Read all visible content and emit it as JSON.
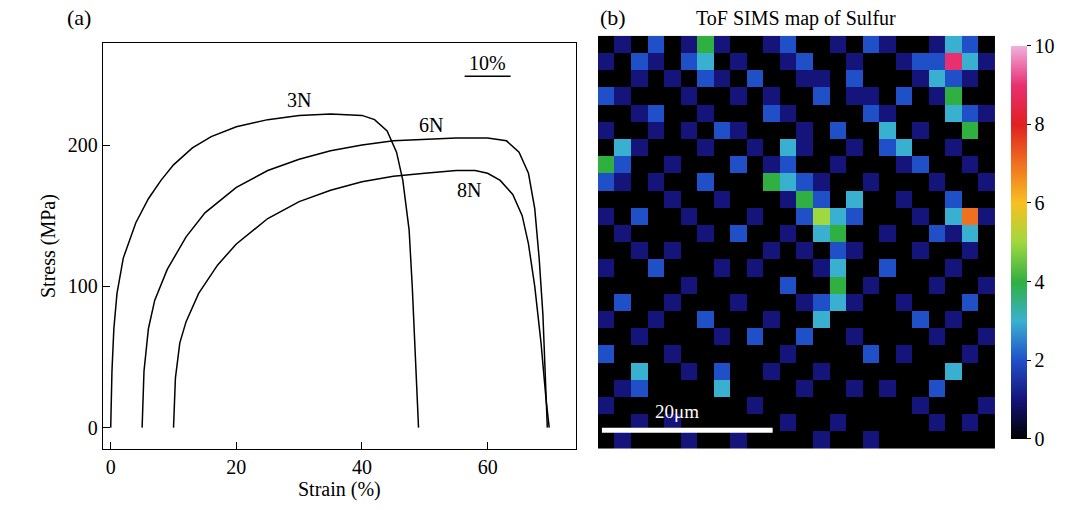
{
  "chart_data": [
    {
      "type": "line",
      "panel_label": "(a)",
      "x_label": "Strain (%)",
      "y_label": "Stress (MPa)",
      "xlim": [
        -1.2,
        74
      ],
      "ylim": [
        -15,
        272
      ],
      "xticks": [
        0,
        20,
        40,
        60
      ],
      "yticks": [
        0,
        100,
        200
      ],
      "grid": false,
      "scale_bar": {
        "text": "10%",
        "x": 60,
        "y": 258
      },
      "series": [
        {
          "name": "3N",
          "color": "#000000",
          "label_at": [
            30,
            232
          ],
          "x": [
            0,
            0.2,
            0.5,
            1,
            2,
            4,
            6,
            8,
            10,
            13,
            16,
            20,
            25,
            30,
            35,
            40,
            42,
            44,
            45.5,
            46.5,
            47.5,
            48,
            48.5,
            49
          ],
          "values": [
            0,
            40,
            70,
            95,
            120,
            145,
            162,
            175,
            186,
            198,
            206,
            213,
            218,
            221,
            222,
            221,
            218,
            210,
            195,
            175,
            140,
            100,
            50,
            0
          ]
        },
        {
          "name": "6N",
          "color": "#000000",
          "label_at": [
            51,
            214
          ],
          "x": [
            5,
            5.3,
            6,
            7,
            9,
            12,
            15,
            20,
            25,
            30,
            35,
            40,
            45,
            50,
            55,
            60,
            63,
            65,
            66.5,
            67.5,
            68.2,
            68.8,
            69.2,
            69.5
          ],
          "values": [
            0,
            40,
            70,
            90,
            112,
            135,
            152,
            170,
            182,
            190,
            196,
            200,
            203,
            204,
            205,
            205,
            203,
            195,
            180,
            155,
            120,
            80,
            40,
            0
          ]
        },
        {
          "name": "8N",
          "color": "#000000",
          "label_at": [
            57,
            168
          ],
          "x": [
            10,
            10.3,
            11,
            12,
            14,
            17,
            20,
            25,
            30,
            35,
            40,
            45,
            50,
            55,
            58,
            60,
            62,
            64,
            65.5,
            66.5,
            67.5,
            68.5,
            69.3,
            69.8
          ],
          "values": [
            0,
            35,
            60,
            75,
            95,
            115,
            130,
            148,
            160,
            168,
            174,
            178,
            180,
            182,
            182,
            180,
            175,
            165,
            150,
            130,
            100,
            60,
            20,
            0
          ]
        }
      ]
    },
    {
      "type": "heatmap",
      "panel_label": "(b)",
      "title": "ToF SIMS map of Sulfur",
      "tick_labels": false,
      "scale_bar": {
        "text": "20μm"
      },
      "colorbar": {
        "range": [
          0,
          10
        ],
        "ticks": [
          0,
          2,
          4,
          6,
          8,
          10
        ]
      },
      "cells": [
        [
          0,
          1,
          0,
          2,
          0,
          1,
          4,
          1,
          0,
          0,
          1,
          2,
          0,
          0,
          1,
          0,
          2,
          1,
          0,
          0,
          1,
          3,
          2,
          0
        ],
        [
          1,
          0,
          2,
          1,
          0,
          2,
          3,
          0,
          1,
          0,
          0,
          1,
          2,
          0,
          0,
          1,
          0,
          0,
          1,
          2,
          2,
          9,
          3,
          1
        ],
        [
          0,
          0,
          1,
          0,
          1,
          0,
          2,
          1,
          0,
          2,
          0,
          0,
          1,
          1,
          0,
          2,
          0,
          0,
          0,
          1,
          3,
          2,
          1,
          0
        ],
        [
          2,
          1,
          0,
          0,
          0,
          1,
          0,
          0,
          1,
          0,
          1,
          0,
          0,
          2,
          0,
          1,
          1,
          0,
          2,
          0,
          1,
          4,
          0,
          0
        ],
        [
          0,
          0,
          1,
          2,
          0,
          0,
          1,
          0,
          0,
          0,
          2,
          1,
          0,
          0,
          0,
          0,
          2,
          1,
          0,
          0,
          0,
          3,
          2,
          1
        ],
        [
          1,
          0,
          0,
          1,
          0,
          1,
          0,
          2,
          1,
          0,
          0,
          0,
          1,
          0,
          2,
          0,
          0,
          3,
          0,
          1,
          0,
          0,
          4,
          0
        ],
        [
          0,
          3,
          1,
          0,
          0,
          0,
          1,
          0,
          0,
          1,
          0,
          3,
          1,
          0,
          0,
          1,
          0,
          2,
          3,
          0,
          0,
          1,
          0,
          0
        ],
        [
          4,
          2,
          0,
          0,
          1,
          0,
          0,
          0,
          2,
          0,
          1,
          2,
          0,
          0,
          1,
          0,
          0,
          0,
          1,
          2,
          0,
          0,
          1,
          0
        ],
        [
          2,
          1,
          0,
          1,
          0,
          0,
          2,
          0,
          0,
          0,
          4,
          3,
          2,
          1,
          0,
          0,
          1,
          0,
          0,
          0,
          1,
          0,
          0,
          1
        ],
        [
          0,
          0,
          0,
          0,
          1,
          0,
          0,
          1,
          0,
          0,
          0,
          1,
          4,
          2,
          0,
          3,
          0,
          0,
          1,
          0,
          0,
          2,
          0,
          0
        ],
        [
          1,
          0,
          2,
          0,
          0,
          1,
          0,
          0,
          0,
          1,
          0,
          0,
          2,
          5,
          3,
          2,
          0,
          0,
          0,
          1,
          0,
          3,
          7,
          1
        ],
        [
          0,
          1,
          0,
          0,
          0,
          0,
          1,
          0,
          2,
          0,
          0,
          1,
          0,
          3,
          4,
          0,
          0,
          1,
          0,
          0,
          2,
          1,
          3,
          0
        ],
        [
          0,
          0,
          1,
          0,
          1,
          0,
          0,
          0,
          0,
          0,
          1,
          0,
          1,
          0,
          2,
          1,
          0,
          0,
          0,
          1,
          0,
          0,
          1,
          0
        ],
        [
          1,
          0,
          0,
          2,
          0,
          0,
          0,
          1,
          0,
          1,
          0,
          0,
          0,
          1,
          3,
          0,
          0,
          2,
          0,
          0,
          0,
          1,
          0,
          0
        ],
        [
          0,
          0,
          0,
          0,
          0,
          1,
          0,
          0,
          0,
          0,
          0,
          2,
          0,
          0,
          4,
          0,
          1,
          0,
          0,
          0,
          1,
          0,
          0,
          1
        ],
        [
          0,
          2,
          0,
          0,
          1,
          0,
          0,
          0,
          1,
          0,
          0,
          0,
          1,
          2,
          3,
          1,
          0,
          0,
          1,
          0,
          0,
          0,
          2,
          0
        ],
        [
          1,
          0,
          0,
          1,
          0,
          0,
          2,
          0,
          0,
          0,
          1,
          0,
          0,
          3,
          0,
          0,
          0,
          0,
          0,
          2,
          0,
          1,
          0,
          0
        ],
        [
          0,
          0,
          1,
          0,
          0,
          0,
          0,
          1,
          0,
          2,
          0,
          0,
          2,
          0,
          0,
          1,
          0,
          0,
          0,
          0,
          1,
          0,
          0,
          1
        ],
        [
          2,
          0,
          0,
          0,
          1,
          0,
          0,
          0,
          0,
          0,
          0,
          1,
          0,
          0,
          0,
          0,
          2,
          0,
          1,
          0,
          0,
          0,
          1,
          0
        ],
        [
          0,
          0,
          3,
          0,
          0,
          1,
          0,
          2,
          0,
          0,
          1,
          0,
          0,
          1,
          0,
          0,
          0,
          0,
          0,
          0,
          0,
          3,
          0,
          0
        ],
        [
          0,
          1,
          2,
          0,
          0,
          0,
          0,
          3,
          0,
          0,
          0,
          0,
          1,
          0,
          0,
          1,
          0,
          1,
          0,
          0,
          2,
          0,
          0,
          0
        ],
        [
          1,
          0,
          0,
          0,
          0,
          0,
          0,
          0,
          0,
          1,
          0,
          0,
          0,
          0,
          0,
          0,
          0,
          0,
          0,
          1,
          0,
          0,
          0,
          1
        ],
        [
          0,
          0,
          1,
          0,
          1,
          0,
          0,
          0,
          0,
          0,
          0,
          1,
          0,
          0,
          1,
          0,
          0,
          0,
          0,
          0,
          1,
          0,
          1,
          0
        ],
        [
          0,
          1,
          0,
          0,
          0,
          1,
          0,
          0,
          1,
          0,
          0,
          0,
          0,
          1,
          0,
          0,
          1,
          0,
          0,
          0,
          0,
          0,
          0,
          0
        ]
      ]
    }
  ]
}
